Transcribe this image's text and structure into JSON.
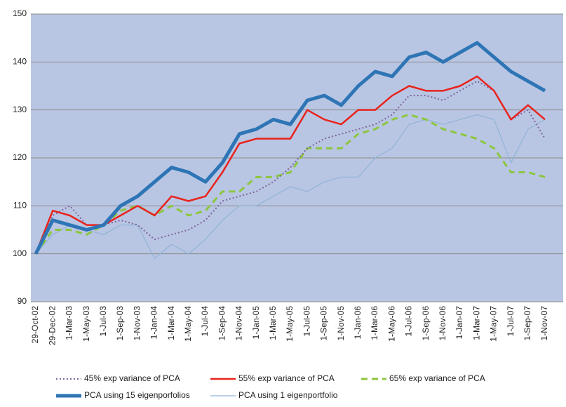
{
  "chart_data": {
    "type": "line",
    "categories": [
      "29-Oct-02",
      "29-Dec-02",
      "1-Mar-03",
      "1-May-03",
      "1-Jul-03",
      "1-Sep-03",
      "1-Nov-03",
      "1-Jan-04",
      "1-Mar-04",
      "1-May-04",
      "1-Jul-04",
      "1-Sep-04",
      "1-Nov-04",
      "1-Jan-05",
      "1-Mar-05",
      "1-May-05",
      "1-Jul-05",
      "1-Sep-05",
      "1-Nov-05",
      "1-Jan-06",
      "1-Mar-06",
      "1-May-06",
      "1-Jul-06",
      "1-Sep-06",
      "1-Nov-06",
      "1-Jan-07",
      "1-Mar-07",
      "1-May-07",
      "1-Jul-07",
      "1-Sep-07",
      "1-Nov-07"
    ],
    "series": [
      {
        "name": "45% exp variance of PCA",
        "color": "#7e649e",
        "values": [
          100,
          108,
          110,
          106,
          106,
          107,
          106,
          103,
          104,
          105,
          107,
          111,
          112,
          113,
          115,
          118,
          122,
          124,
          125,
          126,
          127,
          129,
          133,
          133,
          132,
          134,
          136,
          134,
          128,
          130,
          124
        ]
      },
      {
        "name": "55% exp variance of PCA",
        "color": "#e8231c",
        "values": [
          100,
          109,
          108,
          106,
          106,
          108,
          110,
          108,
          112,
          111,
          112,
          117,
          123,
          124,
          124,
          124,
          130,
          128,
          127,
          130,
          130,
          133,
          135,
          134,
          134,
          135,
          137,
          134,
          128,
          131,
          128
        ]
      },
      {
        "name": "65% exp variance of PCA",
        "color": "#8cc63f",
        "values": [
          100,
          105,
          105,
          104,
          106,
          109,
          110,
          108,
          110,
          108,
          109,
          113,
          113,
          116,
          116,
          117,
          122,
          122,
          122,
          125,
          126,
          128,
          129,
          128,
          126,
          125,
          124,
          122,
          117,
          117,
          116
        ]
      },
      {
        "name": "PCA using 15 eigenporfolios",
        "color": "#2e75b6",
        "values": [
          100,
          107,
          106,
          105,
          106,
          110,
          112,
          115,
          118,
          117,
          115,
          119,
          125,
          126,
          128,
          127,
          132,
          133,
          131,
          135,
          138,
          137,
          141,
          142,
          140,
          142,
          144,
          141,
          138,
          136,
          134
        ]
      },
      {
        "name": "PCA using 1 eigenportfolio",
        "color": "#8fb4d6",
        "values": [
          100,
          104,
          106,
          105,
          104,
          106,
          106,
          99,
          102,
          100,
          103,
          107,
          110,
          110,
          112,
          114,
          113,
          115,
          116,
          116,
          120,
          122,
          127,
          128,
          127,
          128,
          129,
          128,
          119,
          126,
          128
        ]
      }
    ],
    "ylim": [
      90,
      150
    ],
    "yticks": [
      90,
      100,
      110,
      120,
      130,
      140,
      150
    ],
    "grid": true
  }
}
